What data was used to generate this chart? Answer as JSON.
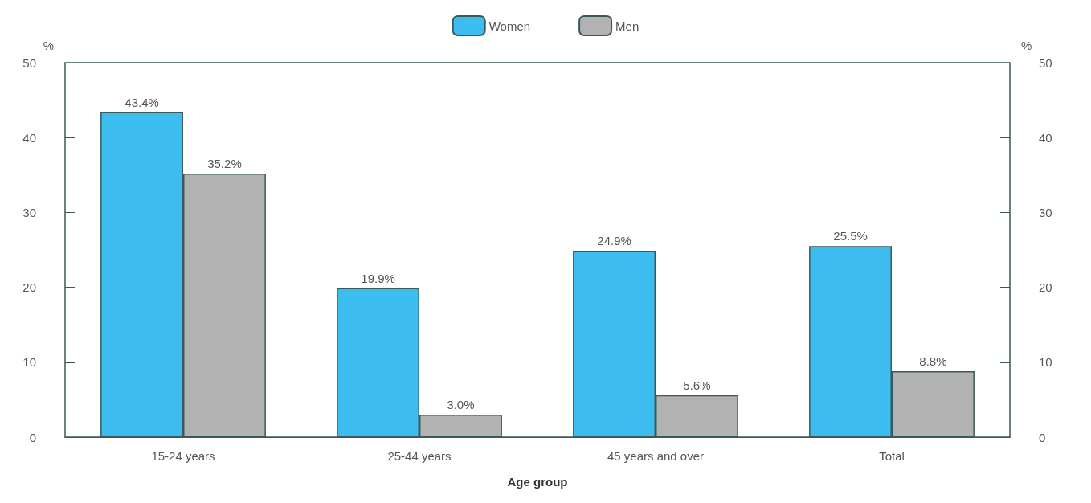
{
  "chart_data": {
    "type": "bar",
    "xlabel": "Age group",
    "ylabel": "%",
    "y2label": "%",
    "categories": [
      "15-24 years",
      "25-44 years",
      "45 years and over",
      "Total"
    ],
    "series": [
      {
        "name": "Women",
        "color": "#3dbcf0",
        "values": [
          43.4,
          19.9,
          24.9,
          25.5
        ],
        "value_labels": [
          "43.4%",
          "19.9%",
          "24.9%",
          "25.5%"
        ]
      },
      {
        "name": "Men",
        "color": "#b2b2b2",
        "values": [
          35.2,
          3.0,
          5.6,
          8.8
        ],
        "value_labels": [
          "35.2%",
          "3.0%",
          "5.6%",
          "8.8%"
        ]
      }
    ],
    "ylim": [
      0,
      50
    ],
    "yticks": [
      0,
      10,
      20,
      30,
      40,
      50
    ],
    "y2lim": [
      0,
      50
    ],
    "y2ticks": [
      0,
      10,
      20,
      30,
      40,
      50
    ],
    "grid": false,
    "legend": "top"
  }
}
